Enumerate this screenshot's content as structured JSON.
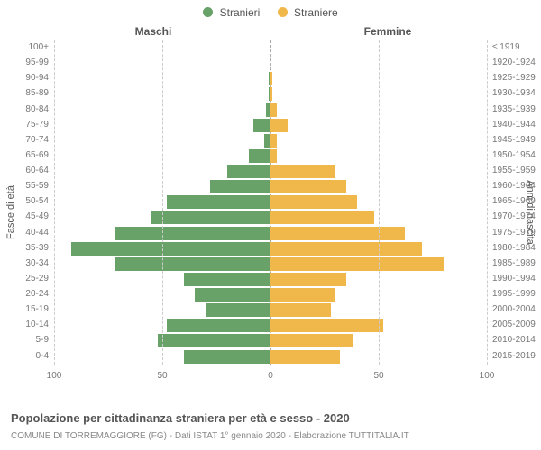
{
  "legend": {
    "items": [
      {
        "label": "Stranieri",
        "color": "#68a268"
      },
      {
        "label": "Straniere",
        "color": "#f0b84a"
      }
    ]
  },
  "column_headers": {
    "left": "Maschi",
    "right": "Femmine"
  },
  "axis_titles": {
    "left": "Fasce di età",
    "right": "Anni di nascita"
  },
  "chart": {
    "type": "population-pyramid",
    "max_value": 100,
    "x_ticks": [
      100,
      50,
      0,
      50,
      100
    ],
    "left_color": "#68a268",
    "right_color": "#f0b84a",
    "background_color": "#ffffff",
    "grid_color": "#cccccc",
    "rows": [
      {
        "age": "100+",
        "birth": "≤ 1919",
        "m": 0,
        "f": 0
      },
      {
        "age": "95-99",
        "birth": "1920-1924",
        "m": 0,
        "f": 0
      },
      {
        "age": "90-94",
        "birth": "1925-1929",
        "m": 1,
        "f": 1
      },
      {
        "age": "85-89",
        "birth": "1930-1934",
        "m": 1,
        "f": 1
      },
      {
        "age": "80-84",
        "birth": "1935-1939",
        "m": 2,
        "f": 3
      },
      {
        "age": "75-79",
        "birth": "1940-1944",
        "m": 8,
        "f": 8
      },
      {
        "age": "70-74",
        "birth": "1945-1949",
        "m": 3,
        "f": 3
      },
      {
        "age": "65-69",
        "birth": "1950-1954",
        "m": 10,
        "f": 3
      },
      {
        "age": "60-64",
        "birth": "1955-1959",
        "m": 20,
        "f": 30
      },
      {
        "age": "55-59",
        "birth": "1960-1964",
        "m": 28,
        "f": 35
      },
      {
        "age": "50-54",
        "birth": "1965-1969",
        "m": 48,
        "f": 40
      },
      {
        "age": "45-49",
        "birth": "1970-1974",
        "m": 55,
        "f": 48
      },
      {
        "age": "40-44",
        "birth": "1975-1979",
        "m": 72,
        "f": 62
      },
      {
        "age": "35-39",
        "birth": "1980-1984",
        "m": 92,
        "f": 70
      },
      {
        "age": "30-34",
        "birth": "1985-1989",
        "m": 72,
        "f": 80
      },
      {
        "age": "25-29",
        "birth": "1990-1994",
        "m": 40,
        "f": 35
      },
      {
        "age": "20-24",
        "birth": "1995-1999",
        "m": 35,
        "f": 30
      },
      {
        "age": "15-19",
        "birth": "2000-2004",
        "m": 30,
        "f": 28
      },
      {
        "age": "10-14",
        "birth": "2005-2009",
        "m": 48,
        "f": 52
      },
      {
        "age": "5-9",
        "birth": "2010-2014",
        "m": 52,
        "f": 38
      },
      {
        "age": "0-4",
        "birth": "2015-2019",
        "m": 40,
        "f": 32
      }
    ]
  },
  "footer": {
    "title": "Popolazione per cittadinanza straniera per età e sesso - 2020",
    "subtitle": "COMUNE DI TORREMAGGIORE (FG) - Dati ISTAT 1° gennaio 2020 - Elaborazione TUTTITALIA.IT"
  }
}
